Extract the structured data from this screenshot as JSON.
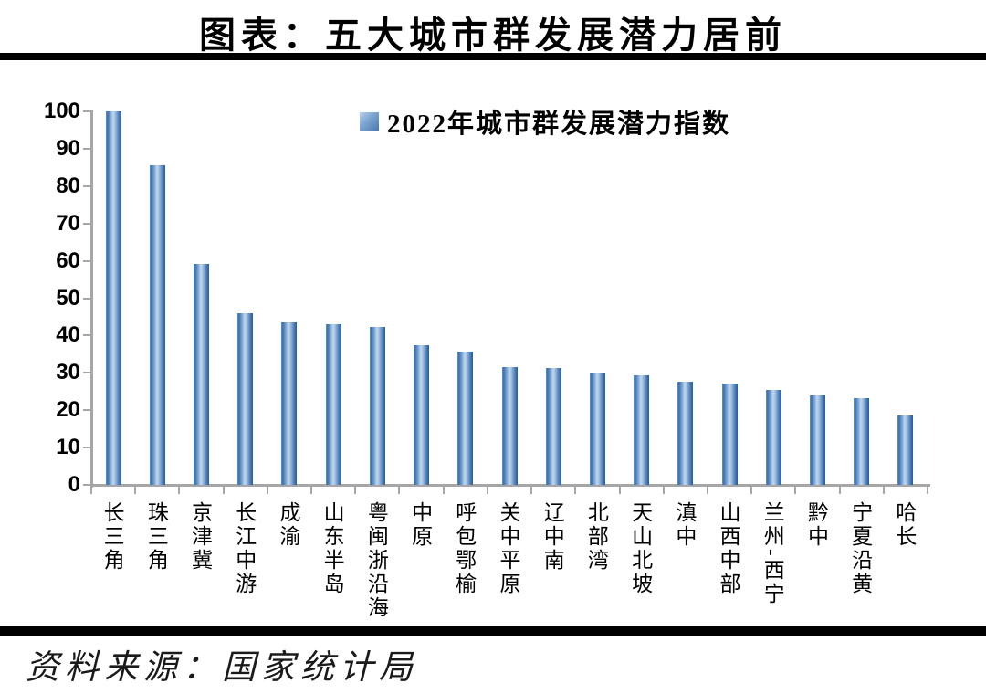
{
  "page": {
    "title": "图表：五大城市群发展潜力居前",
    "source": "资料来源：国家统计局"
  },
  "legend": {
    "label": "2022年城市群发展潜力指数",
    "marker_color": "#4F81BD"
  },
  "chart_data": {
    "type": "bar",
    "title": "2022年城市群发展潜力指数",
    "categories": [
      "长三角",
      "珠三角",
      "京津冀",
      "长江中游",
      "成渝",
      "山东半岛",
      "粤闽浙沿海",
      "中原",
      "呼包鄂榆",
      "关中平原",
      "辽中南",
      "北部湾",
      "天山北坡",
      "滇中",
      "山西中部",
      "兰州-西宁",
      "黔中",
      "宁夏沿黄",
      "哈长"
    ],
    "values": [
      100,
      85.6,
      59.1,
      46.0,
      43.4,
      43.0,
      42.3,
      37.5,
      35.7,
      31.6,
      31.4,
      30.0,
      29.4,
      27.6,
      27.1,
      25.4,
      24.0,
      23.2,
      18.6
    ],
    "xlabel": "",
    "ylabel": "",
    "ylim": [
      0,
      100
    ],
    "yticks": [
      0,
      10,
      20,
      30,
      40,
      50,
      60,
      70,
      80,
      90,
      100
    ],
    "grid": false,
    "legend_position": "top-center",
    "bar_color": "#4F81BD",
    "axis_color": "#A6A6A6",
    "label_orientation": "vertical"
  }
}
